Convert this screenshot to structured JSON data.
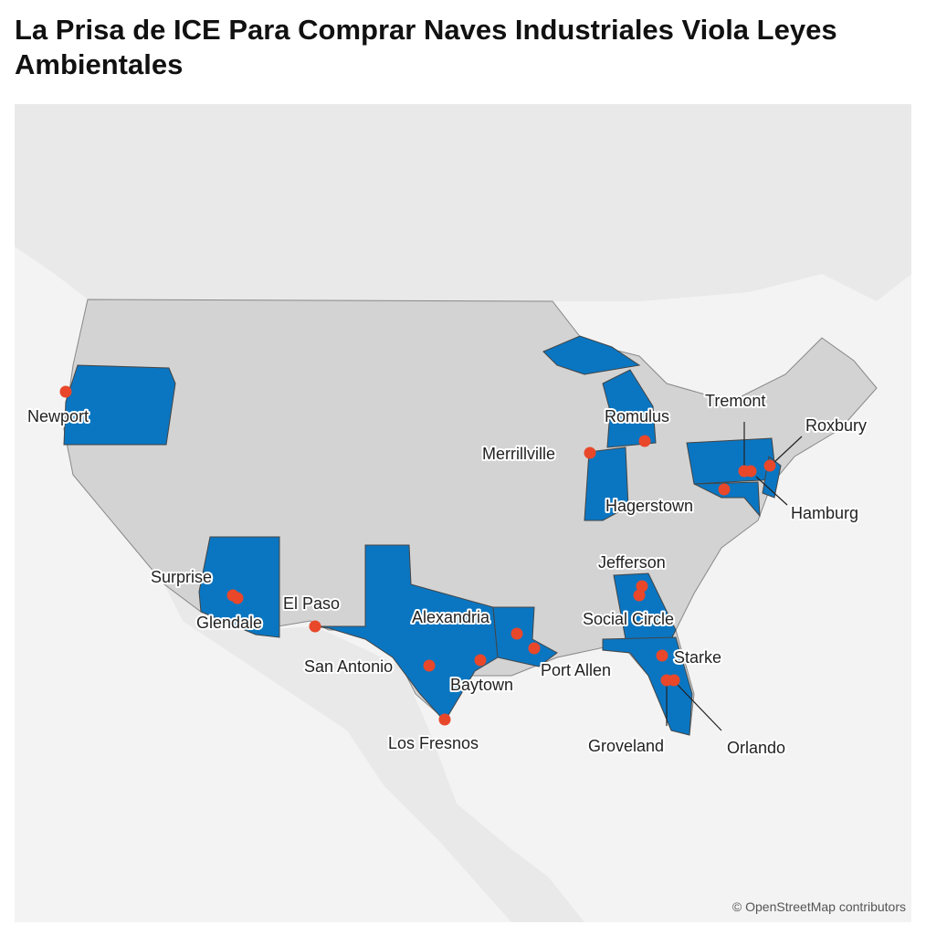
{
  "title": "La Prisa de ICE Para Comprar Naves Industriales Viola Leyes Ambientales",
  "cities": [
    {
      "name": "Newport"
    },
    {
      "name": "Romulus"
    },
    {
      "name": "Merrillville"
    },
    {
      "name": "Tremont"
    },
    {
      "name": "Roxbury"
    },
    {
      "name": "Hamburg"
    },
    {
      "name": "Hagerstown"
    },
    {
      "name": "Jefferson"
    },
    {
      "name": "Social Circle"
    },
    {
      "name": "Surprise"
    },
    {
      "name": "Glendale"
    },
    {
      "name": "El Paso"
    },
    {
      "name": "Alexandria"
    },
    {
      "name": "Port Allen"
    },
    {
      "name": "Baytown"
    },
    {
      "name": "San Antonio"
    },
    {
      "name": "Los Fresnos"
    },
    {
      "name": "Starke"
    },
    {
      "name": "Groveland"
    },
    {
      "name": "Orlando"
    }
  ],
  "attribution": "© OpenStreetMap contributors"
}
